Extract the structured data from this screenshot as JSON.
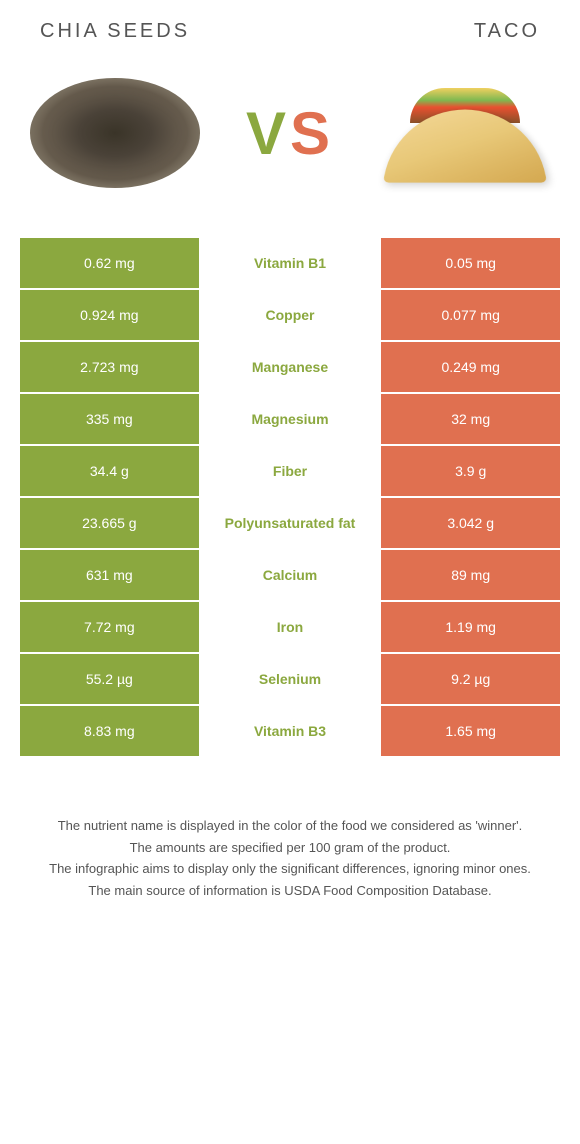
{
  "header": {
    "left_title": "Chia seeds",
    "right_title": "Taco"
  },
  "vs": {
    "v": "V",
    "s": "S"
  },
  "colors": {
    "green": "#8ba83f",
    "orange": "#e07050",
    "white": "#ffffff"
  },
  "rows": [
    {
      "left": "0.62 mg",
      "center": "Vitamin B1",
      "right": "0.05 mg",
      "winner": "green"
    },
    {
      "left": "0.924 mg",
      "center": "Copper",
      "right": "0.077 mg",
      "winner": "green"
    },
    {
      "left": "2.723 mg",
      "center": "Manganese",
      "right": "0.249 mg",
      "winner": "green"
    },
    {
      "left": "335 mg",
      "center": "Magnesium",
      "right": "32 mg",
      "winner": "green"
    },
    {
      "left": "34.4 g",
      "center": "Fiber",
      "right": "3.9 g",
      "winner": "green"
    },
    {
      "left": "23.665 g",
      "center": "Polyunsaturated fat",
      "right": "3.042 g",
      "winner": "green"
    },
    {
      "left": "631 mg",
      "center": "Calcium",
      "right": "89 mg",
      "winner": "green"
    },
    {
      "left": "7.72 mg",
      "center": "Iron",
      "right": "1.19 mg",
      "winner": "green"
    },
    {
      "left": "55.2 µg",
      "center": "Selenium",
      "right": "9.2 µg",
      "winner": "green"
    },
    {
      "left": "8.83 mg",
      "center": "Vitamin B3",
      "right": "1.65 mg",
      "winner": "green"
    }
  ],
  "footer": {
    "line1": "The nutrient name is displayed in the color of the food we considered as 'winner'.",
    "line2": "The amounts are specified per 100 gram of the product.",
    "line3": "The infographic aims to display only the significant differences, ignoring minor ones.",
    "line4": "The main source of information is USDA Food Composition Database."
  }
}
